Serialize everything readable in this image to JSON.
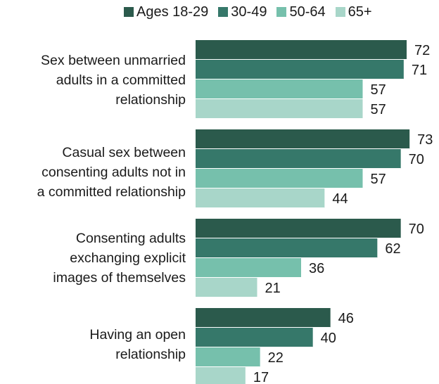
{
  "chart_data": {
    "type": "bar",
    "orientation": "horizontal",
    "categories": [
      "Sex between unmarried\nadults in a committed\nrelationship",
      "Casual sex between\nconsenting adults not in\na committed relationship",
      "Consenting adults\nexchanging explicit\nimages of themselves",
      "Having an open\nrelationship"
    ],
    "series": [
      {
        "name": "Ages 18-29",
        "color": "#2b5a4c",
        "values": [
          72,
          73,
          70,
          46
        ]
      },
      {
        "name": "30-49",
        "color": "#36786a",
        "values": [
          71,
          70,
          62,
          40
        ]
      },
      {
        "name": "50-64",
        "color": "#76c0ac",
        "values": [
          57,
          57,
          36,
          22
        ]
      },
      {
        "name": "65+",
        "color": "#a8d6c9",
        "values": [
          57,
          44,
          21,
          17
        ]
      }
    ],
    "title": "",
    "xlabel": "",
    "ylabel": "",
    "xlim": [
      0,
      100
    ],
    "grid": false,
    "legend_position": "top",
    "data_labels": true
  }
}
